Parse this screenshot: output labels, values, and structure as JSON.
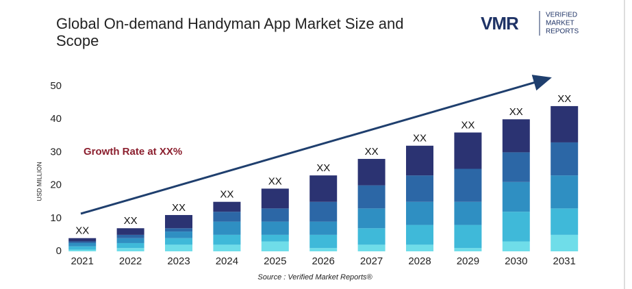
{
  "chart_data": {
    "type": "stacked_bar",
    "title": "Global On-demand Handyman App Market Size and Scope",
    "ylabel": "USD MILLION",
    "annotation": "Growth Rate at XX%",
    "source": "Source :  Verified Market Reports®",
    "categories": [
      "2021",
      "2022",
      "2023",
      "2024",
      "2025",
      "2026",
      "2027",
      "2028",
      "2029",
      "2030",
      "2031"
    ],
    "total_labels": [
      "XX",
      "XX",
      "XX",
      "XX",
      "XX",
      "XX",
      "XX",
      "XX",
      "XX",
      "XX",
      "XX"
    ],
    "series": [
      {
        "color": "#6fdde9",
        "values": [
          0.5,
          1,
          2,
          2,
          3,
          1,
          2,
          2,
          1,
          3,
          5
        ]
      },
      {
        "color": "#3fb9d9",
        "values": [
          1,
          1.5,
          2,
          3,
          2,
          4,
          5,
          6,
          7,
          9,
          8
        ]
      },
      {
        "color": "#2f8fc2",
        "values": [
          1,
          1.5,
          2,
          4,
          4,
          4,
          6,
          7,
          7,
          9,
          10
        ]
      },
      {
        "color": "#2c67a6",
        "values": [
          0.5,
          1,
          1,
          3,
          4,
          6,
          7,
          8,
          10,
          9,
          10
        ]
      },
      {
        "color": "#2b3372",
        "values": [
          1,
          2,
          4,
          3,
          6,
          8,
          8,
          9,
          11,
          10,
          11
        ]
      }
    ],
    "ylim": [
      0,
      50
    ],
    "yticks": [
      0,
      10,
      20,
      30,
      40,
      50
    ],
    "grid": false
  },
  "logo": {
    "mark": "VMR",
    "lines": [
      "VERIFIED",
      "MARKET",
      "REPORTS"
    ]
  }
}
